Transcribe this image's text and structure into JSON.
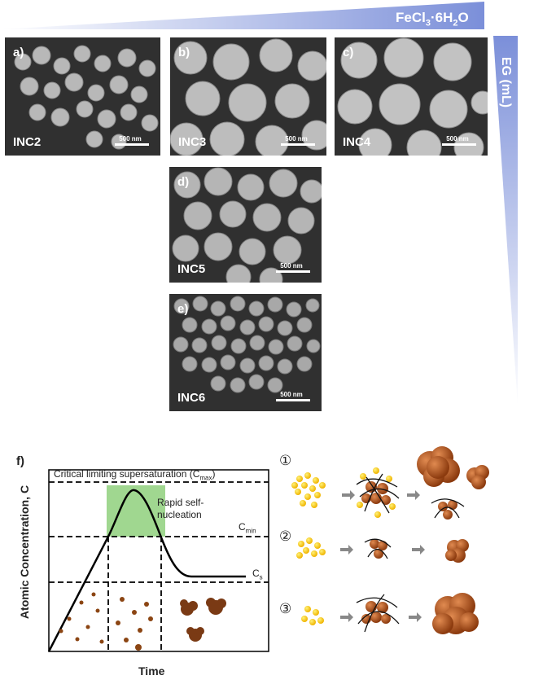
{
  "gradients": {
    "fecl3_label": "FeCl3·6H2O",
    "fecl3_main": "FeCl",
    "fecl3_sub1": "3",
    "fecl3_mid": "·6H",
    "fecl3_sub2": "2",
    "fecl3_end": "O",
    "eg_label": "EG (mL)",
    "color": "#7b8fd9"
  },
  "panels": [
    {
      "tag": "a)",
      "sample": "INC2",
      "scale": "500 nm"
    },
    {
      "tag": "b)",
      "sample": "INC3",
      "scale": "500 nm"
    },
    {
      "tag": "c)",
      "sample": "INC4",
      "scale": "500 nm"
    },
    {
      "tag": "d)",
      "sample": "INC5",
      "scale": "500 nm"
    },
    {
      "tag": "e)",
      "sample": "INC6",
      "scale": "500 nm"
    }
  ],
  "diagram": {
    "tag": "f)",
    "ylabel": "Atomic Concentration, C",
    "xlabel": "Time",
    "cmax_text": "Critical limiting supersaturation (C",
    "cmax_sub": "max",
    "cmax_close": ")",
    "cmin_main": "C",
    "cmin_sub": "min",
    "cs_main": "C",
    "cs_sub": "s",
    "nucleation_line1": "Rapid self-",
    "nucleation_line2": "nucleation",
    "highlight_color": "#8fd07c",
    "particle_color": "#8b4513"
  },
  "pathways": [
    {
      "num": "①"
    },
    {
      "num": "②"
    },
    {
      "num": "③"
    }
  ]
}
